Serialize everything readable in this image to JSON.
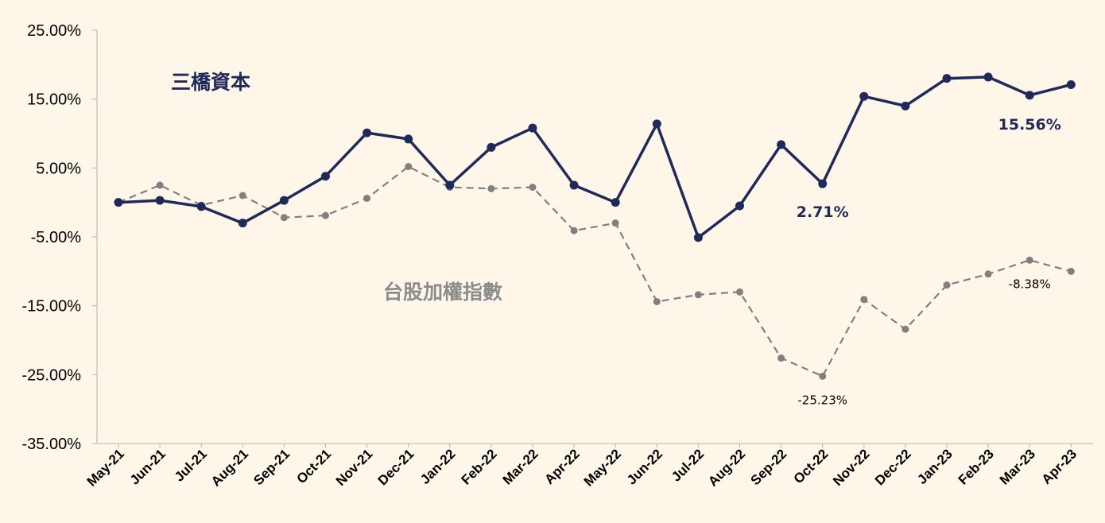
{
  "chart_data": {
    "type": "line",
    "categories": [
      "May-21",
      "Jun-21",
      "Jul-21",
      "Aug-21",
      "Sep-21",
      "Oct-21",
      "Nov-21",
      "Dec-21",
      "Jan-22",
      "Feb-22",
      "Mar-22",
      "Apr-22",
      "May-22",
      "Jun-22",
      "Jul-22",
      "Aug-22",
      "Sep-22",
      "Oct-22",
      "Nov-22",
      "Dec-22",
      "Jan-23",
      "Feb-23",
      "Mar-23",
      "Apr-23"
    ],
    "yticks": [
      "25.00%",
      "15.00%",
      "5.00%",
      "-5.00%",
      "-15.00%",
      "-25.00%",
      "-35.00%"
    ],
    "ylim": [
      -35,
      25
    ],
    "series": [
      {
        "name": "三橋資本",
        "color": "#1f2a5a",
        "style": "solid",
        "values": [
          0.0,
          0.3,
          -0.6,
          -3.0,
          0.3,
          3.8,
          10.1,
          9.2,
          2.5,
          8.0,
          10.8,
          2.5,
          0.0,
          11.4,
          -5.1,
          -0.5,
          8.4,
          2.71,
          15.4,
          14.0,
          18.0,
          18.2,
          15.56,
          17.1
        ]
      },
      {
        "name": "台股加權指數",
        "color": "#808080",
        "style": "dashed",
        "values": [
          0.0,
          2.5,
          -0.4,
          1.0,
          -2.2,
          -1.9,
          0.6,
          5.2,
          2.2,
          2.0,
          2.2,
          -4.1,
          -3.0,
          -14.4,
          -13.4,
          -13.0,
          -22.6,
          -25.23,
          -14.1,
          -18.4,
          -12.0,
          -10.4,
          -8.38,
          -10.0
        ]
      }
    ],
    "annotations": [
      {
        "series": 0,
        "index": 22,
        "text": "15.56%"
      },
      {
        "series": 0,
        "index": 17,
        "text": "2.71%"
      },
      {
        "series": 1,
        "index": 22,
        "text": "-8.38%"
      },
      {
        "series": 1,
        "index": 17,
        "text": "-25.23%"
      }
    ],
    "legend": "inline labels"
  }
}
